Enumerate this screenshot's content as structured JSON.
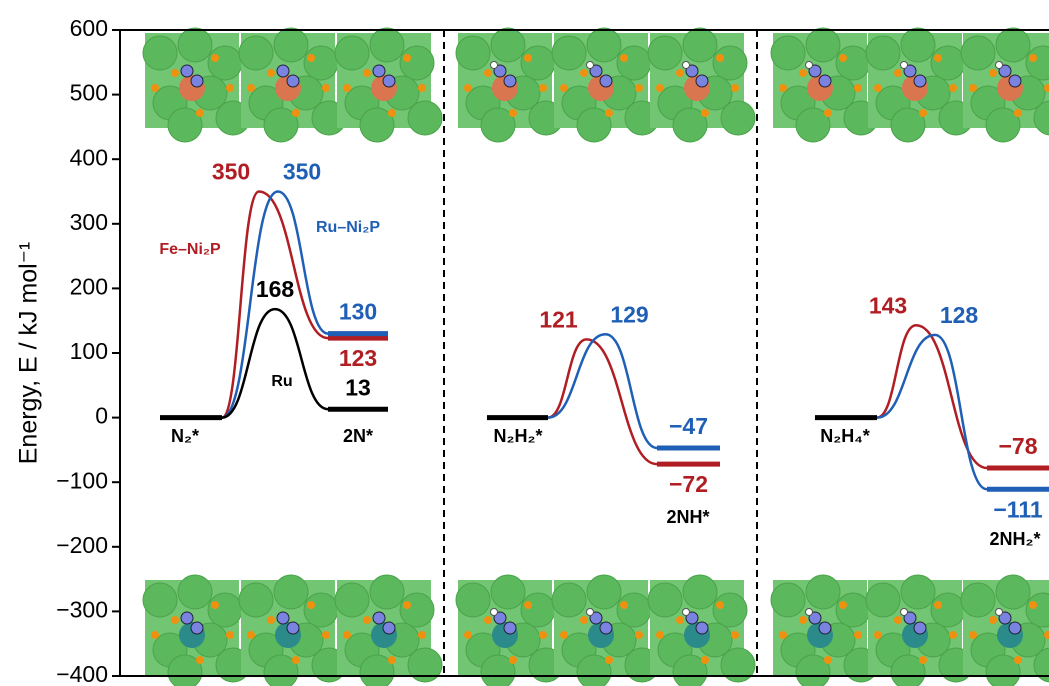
{
  "chart_data": {
    "type": "energy-profile",
    "ylabel": "Energy, E / kJ mol⁻¹",
    "ylim": [
      -400,
      600
    ],
    "yticks": [
      {
        "value": -400,
        "label": "−400"
      },
      {
        "value": -300,
        "label": "−300"
      },
      {
        "value": -200,
        "label": "−200"
      },
      {
        "value": -100,
        "label": "−100"
      },
      0,
      100,
      200,
      300,
      400,
      500,
      600
    ],
    "panels": [
      {
        "initial": "N₂*",
        "final": "2N*"
      },
      {
        "initial": "N₂H₂*",
        "final": "2NH*"
      },
      {
        "initial": "N₂H₄*",
        "final": "2NH₂*"
      }
    ],
    "series": [
      {
        "name": "Fe–Ni₂P",
        "color": "#b01e23",
        "values": [
          [
            0,
            350,
            123
          ],
          [
            0,
            121,
            -72
          ],
          [
            0,
            143,
            -78
          ]
        ],
        "value_labels": [
          [
            null,
            null,
            null
          ],
          [
            null,
            null,
            "−72"
          ],
          [
            null,
            null,
            "−78"
          ]
        ]
      },
      {
        "name": "Ru–Ni₂P",
        "color": "#1f5fb5",
        "values": [
          [
            0,
            350,
            130
          ],
          [
            0,
            129,
            -47
          ],
          [
            0,
            128,
            -111
          ]
        ],
        "value_labels": [
          [
            null,
            null,
            null
          ],
          [
            null,
            null,
            "−47"
          ],
          [
            null,
            null,
            "−111"
          ]
        ]
      },
      {
        "name": "Ru",
        "color": "#000000",
        "values": [
          [
            0,
            168,
            13
          ],
          null,
          null
        ]
      }
    ]
  }
}
